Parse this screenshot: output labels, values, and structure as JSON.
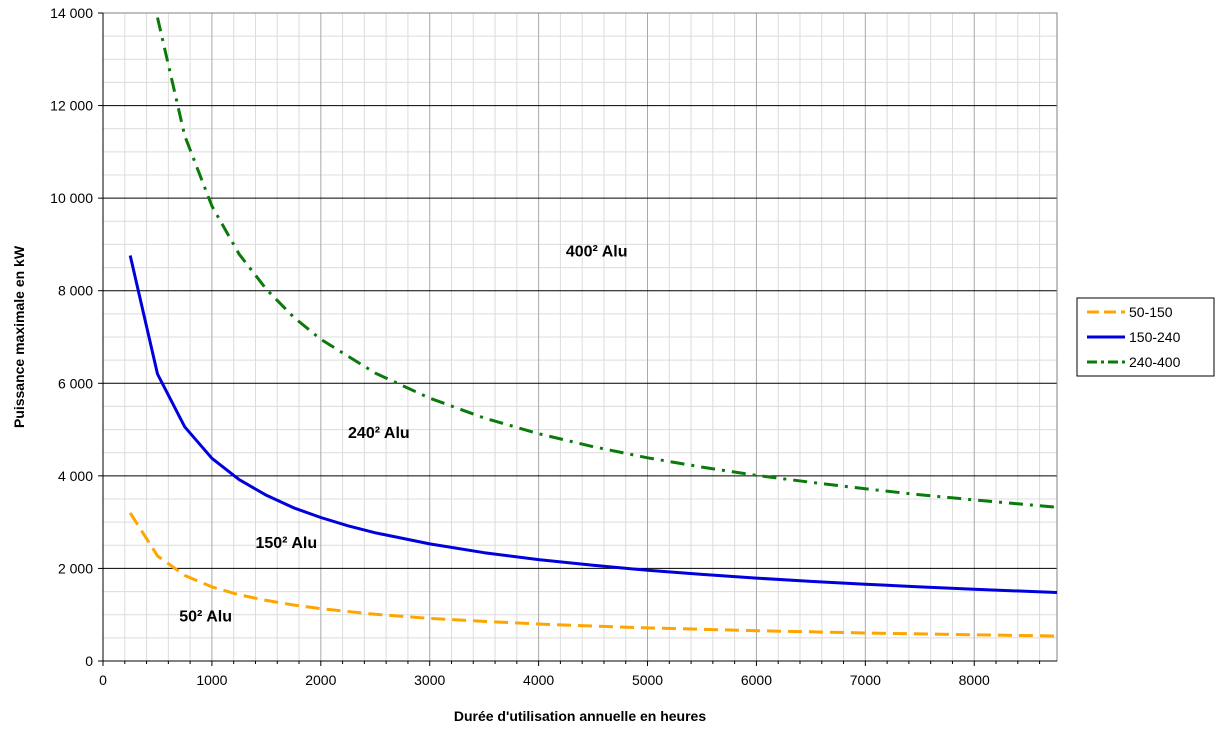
{
  "chart_data": {
    "type": "line",
    "title": "",
    "xlabel": "Durée d'utilisation annuelle en heures",
    "ylabel": "Puissance maximale en kW",
    "xlim": [
      0,
      8760
    ],
    "ylim": [
      0,
      14000
    ],
    "x_ticks": [
      0,
      1000,
      2000,
      3000,
      4000,
      5000,
      6000,
      7000,
      8000
    ],
    "x_tick_labels": [
      "0",
      "1000",
      "2000",
      "3000",
      "4000",
      "5000",
      "6000",
      "7000",
      "8000"
    ],
    "y_ticks": [
      0,
      2000,
      4000,
      6000,
      8000,
      10000,
      12000,
      14000
    ],
    "y_tick_labels": [
      "0",
      "2 000",
      "4 000",
      "6 000",
      "8 000",
      "10 000",
      "12 000",
      "14 000"
    ],
    "grid": {
      "major": true,
      "minor": true
    },
    "legend_position": "right",
    "series": [
      {
        "name": "50-150",
        "color": "#FFA500",
        "dash": "dashed",
        "x": [
          250,
          500,
          750,
          1000,
          1250,
          1500,
          1750,
          2000,
          2500,
          3000,
          3500,
          4000,
          4500,
          5000,
          5500,
          6000,
          6500,
          7000,
          7500,
          8000,
          8760
        ],
        "y": [
          3200,
          2270,
          1850,
          1600,
          1430,
          1310,
          1210,
          1130,
          1010,
          920,
          855,
          800,
          755,
          715,
          685,
          655,
          630,
          605,
          585,
          565,
          540
        ]
      },
      {
        "name": "150-240",
        "color": "#0000DD",
        "dash": "solid",
        "x": [
          250,
          500,
          750,
          1000,
          1250,
          1500,
          1750,
          2000,
          2250,
          2500,
          3000,
          3500,
          4000,
          4500,
          5000,
          5500,
          6000,
          6500,
          7000,
          7500,
          8000,
          8760
        ],
        "y": [
          8760,
          6200,
          5060,
          4380,
          3920,
          3580,
          3310,
          3100,
          2920,
          2770,
          2530,
          2340,
          2190,
          2070,
          1960,
          1870,
          1790,
          1720,
          1660,
          1600,
          1550,
          1480
        ]
      },
      {
        "name": "240-400",
        "color": "#0B7A0B",
        "dash": "dashdot",
        "x": [
          500,
          750,
          1000,
          1250,
          1500,
          1750,
          2000,
          2500,
          3000,
          3500,
          4000,
          4500,
          5000,
          5500,
          6000,
          6500,
          7000,
          7500,
          8000,
          8760
        ],
        "y": [
          13900,
          11350,
          9830,
          8790,
          8030,
          7430,
          6950,
          6220,
          5680,
          5250,
          4910,
          4630,
          4390,
          4190,
          4010,
          3860,
          3720,
          3590,
          3480,
          3320
        ]
      }
    ],
    "annotations": [
      {
        "text": "400² Alu",
        "x": 4250,
        "y": 8740
      },
      {
        "text": "240² Alu",
        "x": 2250,
        "y": 4820
      },
      {
        "text": "150² Alu",
        "x": 1400,
        "y": 2440
      },
      {
        "text": "50² Alu",
        "x": 700,
        "y": 850
      }
    ]
  }
}
